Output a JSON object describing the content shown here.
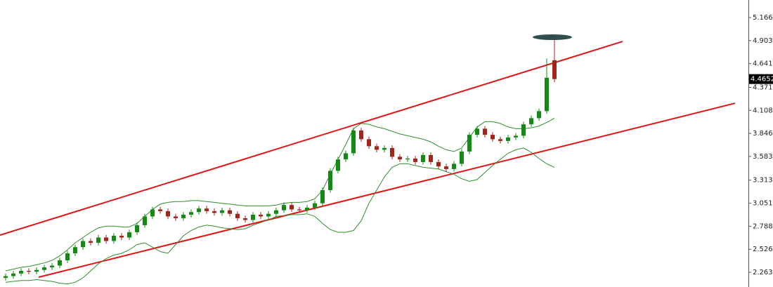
{
  "chart_data": {
    "type": "candlestick",
    "ylim": [
      2.096,
      5.366
    ],
    "yticks": [
      {
        "value": 5.166,
        "label": "5.1660"
      },
      4.9035,
      {
        "value": 4.641,
        "label": "4.6410"
      },
      {
        "value": 4.371,
        "label": "4.3710"
      },
      4.1085,
      {
        "value": 3.846,
        "label": "3.8460"
      },
      3.5835,
      3.3135,
      {
        "value": 3.051,
        "label": "3.0510"
      },
      2.7885,
      {
        "value": 2.526,
        "label": "2.5260"
      },
      2.2635
    ],
    "last_price": 4.4652,
    "up_color": "#138a13",
    "down_color": "#a0261c",
    "band_color": "#2f8f2f",
    "trend_color": "#e01414",
    "open": [
      2.2,
      2.22,
      2.25,
      2.28,
      2.27,
      2.29,
      2.32,
      2.34,
      2.4,
      2.48,
      2.55,
      2.62,
      2.6,
      2.66,
      2.62,
      2.68,
      2.66,
      2.72,
      2.8,
      2.9,
      2.98,
      2.96,
      2.9,
      2.88,
      2.92,
      2.95,
      2.99,
      2.96,
      2.94,
      2.97,
      2.93,
      2.88,
      2.86,
      2.92,
      2.9,
      2.93,
      2.97,
      3.03,
      2.98,
      2.97,
      3.0,
      3.05,
      3.2,
      3.42,
      3.55,
      3.62,
      3.88,
      3.78,
      3.7,
      3.66,
      3.68,
      3.58,
      3.55,
      3.56,
      3.52,
      3.6,
      3.52,
      3.47,
      3.44,
      3.5,
      3.64,
      3.83,
      3.9,
      3.83,
      3.78,
      3.76,
      3.8,
      3.82,
      3.95,
      4.02,
      4.1,
      4.68
    ],
    "high": [
      2.25,
      2.28,
      2.31,
      2.31,
      2.32,
      2.35,
      2.37,
      2.43,
      2.51,
      2.58,
      2.65,
      2.65,
      2.69,
      2.69,
      2.71,
      2.71,
      2.75,
      2.83,
      2.93,
      3.01,
      3.01,
      2.99,
      2.93,
      2.95,
      2.98,
      3.02,
      3.02,
      2.99,
      3.0,
      3.0,
      2.96,
      2.91,
      2.95,
      2.95,
      2.96,
      3.0,
      3.06,
      3.06,
      3.01,
      3.03,
      3.08,
      3.23,
      3.45,
      3.58,
      3.65,
      3.91,
      3.91,
      3.81,
      3.73,
      3.71,
      3.71,
      3.61,
      3.59,
      3.59,
      3.63,
      3.63,
      3.55,
      3.5,
      3.53,
      3.67,
      3.86,
      3.93,
      3.93,
      3.86,
      3.81,
      3.83,
      3.85,
      3.98,
      4.05,
      4.13,
      4.7,
      4.93
    ],
    "low": [
      2.17,
      2.19,
      2.22,
      2.24,
      2.24,
      2.26,
      2.29,
      2.31,
      2.37,
      2.45,
      2.52,
      2.57,
      2.57,
      2.59,
      2.59,
      2.63,
      2.63,
      2.69,
      2.77,
      2.87,
      2.93,
      2.87,
      2.85,
      2.85,
      2.89,
      2.92,
      2.93,
      2.91,
      2.91,
      2.9,
      2.85,
      2.83,
      2.83,
      2.87,
      2.87,
      2.9,
      2.94,
      2.95,
      2.94,
      2.94,
      2.97,
      3.02,
      3.17,
      3.39,
      3.52,
      3.59,
      3.75,
      3.67,
      3.63,
      3.63,
      3.55,
      3.52,
      3.52,
      3.49,
      3.49,
      3.49,
      3.44,
      3.41,
      3.41,
      3.47,
      3.61,
      3.8,
      3.8,
      3.75,
      3.73,
      3.73,
      3.77,
      3.79,
      3.92,
      3.99,
      4.07,
      4.43
    ],
    "close": [
      2.22,
      2.25,
      2.28,
      2.27,
      2.29,
      2.32,
      2.34,
      2.4,
      2.48,
      2.55,
      2.62,
      2.6,
      2.66,
      2.62,
      2.68,
      2.66,
      2.72,
      2.8,
      2.9,
      2.98,
      2.96,
      2.9,
      2.88,
      2.92,
      2.95,
      2.99,
      2.96,
      2.94,
      2.97,
      2.93,
      2.88,
      2.86,
      2.92,
      2.9,
      2.93,
      2.97,
      3.03,
      2.98,
      2.97,
      3.0,
      3.05,
      3.2,
      3.42,
      3.55,
      3.62,
      3.88,
      3.78,
      3.7,
      3.66,
      3.68,
      3.58,
      3.55,
      3.56,
      3.52,
      3.6,
      3.52,
      3.47,
      3.44,
      3.5,
      3.64,
      3.83,
      3.9,
      3.83,
      3.78,
      3.76,
      3.8,
      3.82,
      3.95,
      4.02,
      4.1,
      4.48,
      4.4652
    ],
    "upper_band": [
      2.28,
      2.3,
      2.32,
      2.33,
      2.35,
      2.37,
      2.4,
      2.45,
      2.52,
      2.6,
      2.66,
      2.72,
      2.77,
      2.79,
      2.79,
      2.78,
      2.78,
      2.82,
      2.9,
      2.98,
      3.04,
      3.06,
      3.07,
      3.07,
      3.08,
      3.08,
      3.07,
      3.06,
      3.05,
      3.04,
      3.03,
      3.02,
      3.02,
      3.02,
      3.02,
      3.03,
      3.05,
      3.06,
      3.06,
      3.07,
      3.1,
      3.2,
      3.38,
      3.55,
      3.72,
      3.9,
      3.96,
      3.95,
      3.92,
      3.9,
      3.87,
      3.84,
      3.82,
      3.8,
      3.78,
      3.75,
      3.7,
      3.66,
      3.64,
      3.68,
      3.8,
      3.92,
      3.98,
      3.98,
      3.96,
      3.92,
      3.9,
      3.9,
      3.91,
      3.93,
      3.97,
      4.02
    ],
    "lower_band": [
      2.15,
      2.16,
      2.17,
      2.17,
      2.18,
      2.17,
      2.16,
      2.14,
      2.13,
      2.15,
      2.2,
      2.28,
      2.36,
      2.42,
      2.46,
      2.48,
      2.52,
      2.58,
      2.6,
      2.55,
      2.5,
      2.48,
      2.58,
      2.68,
      2.74,
      2.78,
      2.8,
      2.79,
      2.77,
      2.76,
      2.75,
      2.76,
      2.8,
      2.83,
      2.86,
      2.9,
      2.91,
      2.92,
      2.92,
      2.93,
      2.9,
      2.82,
      2.75,
      2.72,
      2.72,
      2.74,
      2.85,
      3.05,
      3.2,
      3.35,
      3.46,
      3.5,
      3.5,
      3.48,
      3.46,
      3.45,
      3.44,
      3.41,
      3.38,
      3.33,
      3.3,
      3.32,
      3.4,
      3.48,
      3.55,
      3.62,
      3.66,
      3.68,
      3.63,
      3.56,
      3.5,
      3.46
    ],
    "trendlines": [
      [
        2.687,
        4.894
      ],
      [
        2.208,
        4.19
      ]
    ]
  }
}
